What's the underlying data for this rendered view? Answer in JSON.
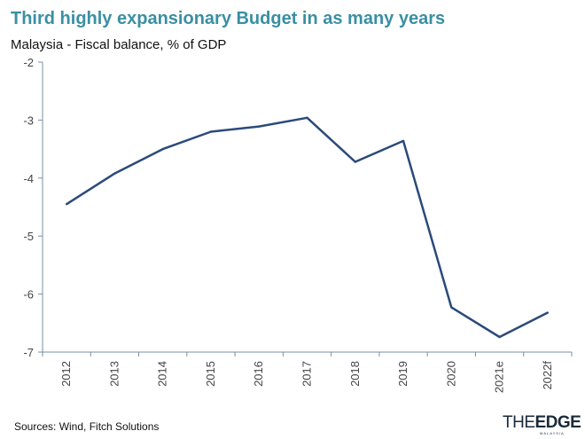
{
  "header": {
    "title": "Third highly expansionary Budget in as many years",
    "subtitle": "Malaysia - Fiscal balance, % of GDP"
  },
  "footer": {
    "source": "Sources: Wind, Fitch Solutions",
    "logo_text": "THEEDGE MALAYSIA"
  },
  "colors": {
    "title": "#3a8fa3",
    "line": "#2b4a7a",
    "axis": "#7a8fa8"
  },
  "chart_data": {
    "type": "line",
    "title": "Third highly expansionary Budget in as many years",
    "subtitle": "Malaysia - Fiscal balance, % of GDP",
    "categories": [
      "2012",
      "2013",
      "2014",
      "2015",
      "2016",
      "2017",
      "2018",
      "2019",
      "2020",
      "2021e",
      "2022f"
    ],
    "series": [
      {
        "values": [
          -4.45,
          -3.92,
          -3.5,
          -3.2,
          -3.11,
          -2.96,
          -3.72,
          -3.36,
          -6.23,
          -6.74,
          -6.32
        ]
      }
    ],
    "ylim": [
      -7,
      -2
    ],
    "yticks": [
      -2,
      -3,
      -4,
      -5,
      -6,
      -7
    ],
    "ytick_labels": [
      "-2",
      "-3",
      "-4",
      "-5",
      "-6",
      "-7"
    ],
    "grid": false,
    "legend": "none"
  }
}
